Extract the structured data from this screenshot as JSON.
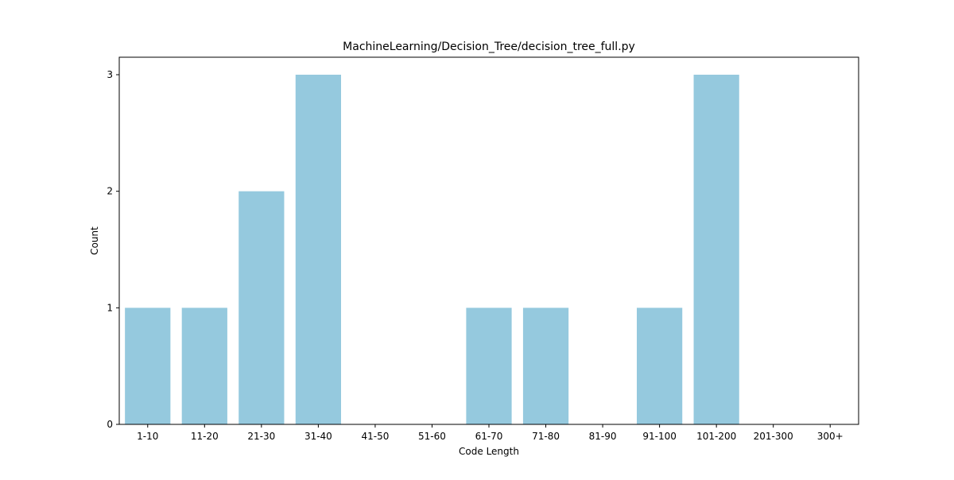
{
  "chart_data": {
    "type": "bar",
    "title": "MachineLearning/Decision_Tree/decision_tree_full.py",
    "xlabel": "Code Length",
    "ylabel": "Count",
    "categories": [
      "1-10",
      "11-20",
      "21-30",
      "31-40",
      "41-50",
      "51-60",
      "61-70",
      "71-80",
      "81-90",
      "91-100",
      "101-200",
      "201-300",
      "300+"
    ],
    "values": [
      1,
      1,
      2,
      3,
      0,
      0,
      1,
      1,
      0,
      1,
      3,
      0,
      0
    ],
    "yticks": [
      0,
      1,
      2,
      3
    ],
    "ylim": [
      0,
      3.15
    ],
    "grid": false,
    "bar_color": "#95c9de"
  }
}
